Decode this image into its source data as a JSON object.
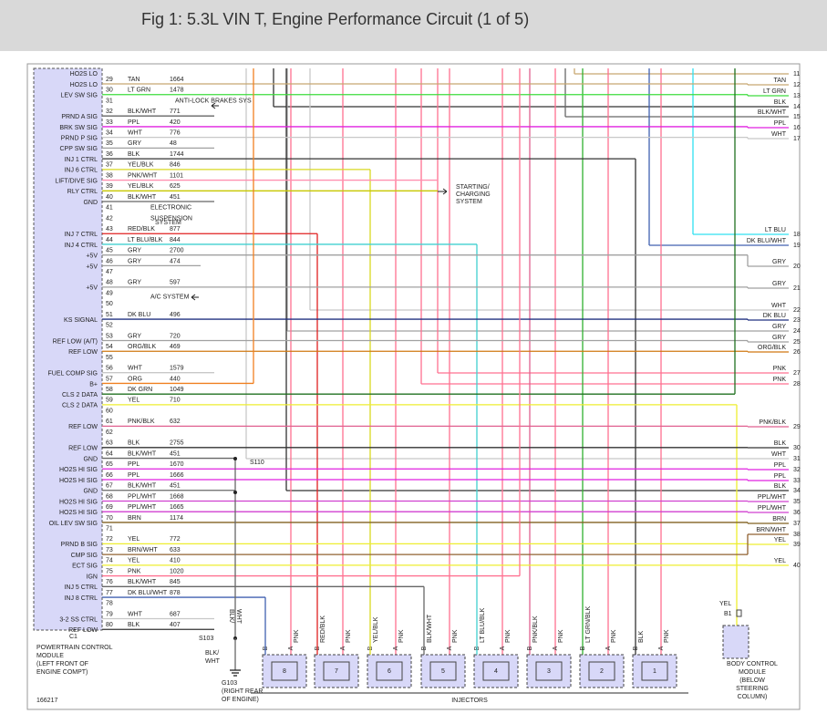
{
  "header": {
    "title": "Fig 1: 5.3L VIN T, Engine Performance Circuit (1 of 5)"
  },
  "pcm": {
    "cut_label": "HO2S LO",
    "connector": "C1",
    "label": [
      "POWERTRAIN CONTROL",
      "MODULE",
      "(LEFT FRONT OF",
      "ENGINE COMPT)"
    ],
    "pins": [
      {
        "pin": "29",
        "signal": "HO2S LO",
        "color": "TAN",
        "circuit": "1664",
        "stroke": "#c8a870"
      },
      {
        "pin": "30",
        "signal": "LEV SW SIG",
        "color": "LT GRN",
        "circuit": "1478",
        "stroke": "#3ddc3d"
      },
      {
        "pin": "31",
        "note": "ANTI-LOCK BRAKES SYS"
      },
      {
        "pin": "32",
        "signal": "PRND A SIG",
        "color": "BLK/WHT",
        "circuit": "771",
        "stroke": "#666666"
      },
      {
        "pin": "33",
        "signal": "BRK SW SIG",
        "color": "PPL",
        "circuit": "420",
        "stroke": "#e020e0"
      },
      {
        "pin": "34",
        "signal": "PRND P SIG",
        "color": "WHT",
        "circuit": "776",
        "stroke": "#c8c8c8"
      },
      {
        "pin": "35",
        "signal": "CPP SW SIG",
        "color": "GRY",
        "circuit": "48",
        "stroke": "#a0a0a0"
      },
      {
        "pin": "36",
        "signal": "INJ 1 CTRL",
        "color": "BLK",
        "circuit": "1744",
        "stroke": "#333333"
      },
      {
        "pin": "37",
        "signal": "INJ 6 CTRL",
        "color": "YEL/BLK",
        "circuit": "846",
        "stroke": "#d8d820"
      },
      {
        "pin": "38",
        "signal": "LIFT/DIVE SIG",
        "color": "PNK/WHT",
        "circuit": "1101",
        "stroke": "#ff90b0"
      },
      {
        "pin": "39",
        "signal": "RLY CTRL",
        "color": "YEL/BLK",
        "circuit": "625",
        "stroke": "#c8c800"
      },
      {
        "pin": "40",
        "signal": "GND",
        "color": "BLK/WHT",
        "circuit": "451",
        "stroke": "#666666"
      },
      {
        "pin": "41",
        "note": "ELECTRONIC"
      },
      {
        "pin": "42",
        "note": "SUSPENSION"
      },
      {
        "pin": "43",
        "signal": "INJ 7 CTRL",
        "color": "RED/BLK",
        "circuit": "877",
        "stroke": "#e02020"
      },
      {
        "pin": "44",
        "signal": "INJ 4 CTRL",
        "color": "LT BLU/BLK",
        "circuit": "844",
        "stroke": "#40d0d0"
      },
      {
        "pin": "45",
        "signal": "+5V",
        "color": "GRY",
        "circuit": "2700",
        "stroke": "#a0a0a0"
      },
      {
        "pin": "46",
        "signal": "+5V",
        "color": "GRY",
        "circuit": "474",
        "stroke": "#a0a0a0"
      },
      {
        "pin": "47"
      },
      {
        "pin": "48",
        "signal": "+5V",
        "color": "GRY",
        "circuit": "597",
        "stroke": "#a0a0a0"
      },
      {
        "pin": "49",
        "note": "A/C SYSTEM"
      },
      {
        "pin": "50"
      },
      {
        "pin": "51",
        "signal": "KS SIGNAL",
        "color": "DK BLU",
        "circuit": "496",
        "stroke": "#203080"
      },
      {
        "pin": "52"
      },
      {
        "pin": "53",
        "signal": "REF LOW (A/T)",
        "color": "GRY",
        "circuit": "720",
        "stroke": "#a0a0a0"
      },
      {
        "pin": "54",
        "signal": "REF LOW",
        "color": "ORG/BLK",
        "circuit": "469",
        "stroke": "#d07810"
      },
      {
        "pin": "55"
      },
      {
        "pin": "56",
        "signal": "FUEL COMP SIG",
        "color": "WHT",
        "circuit": "1579",
        "stroke": "#c8c8c8"
      },
      {
        "pin": "57",
        "signal": "B+",
        "color": "ORG",
        "circuit": "440",
        "stroke": "#f08020"
      },
      {
        "pin": "58",
        "signal": "CLS 2 DATA",
        "color": "DK GRN",
        "circuit": "1049",
        "stroke": "#207020"
      },
      {
        "pin": "59",
        "signal": "CLS 2 DATA",
        "color": "YEL",
        "circuit": "710",
        "stroke": "#eeee30"
      },
      {
        "pin": "60"
      },
      {
        "pin": "61",
        "signal": "REF LOW",
        "color": "PNK/BLK",
        "circuit": "632",
        "stroke": "#e06090"
      },
      {
        "pin": "62"
      },
      {
        "pin": "63",
        "signal": "REF LOW",
        "color": "BLK",
        "circuit": "2755",
        "stroke": "#333333"
      },
      {
        "pin": "64",
        "signal": "GND",
        "color": "BLK/WHT",
        "circuit": "451",
        "stroke": "#666666"
      },
      {
        "pin": "65",
        "signal": "HO2S HI SIG",
        "color": "PPL",
        "circuit": "1670",
        "stroke": "#e020e0"
      },
      {
        "pin": "66",
        "signal": "HO2S HI SIG",
        "color": "PPL",
        "circuit": "1666",
        "stroke": "#e020e0"
      },
      {
        "pin": "67",
        "signal": "GND",
        "color": "BLK/WHT",
        "circuit": "451",
        "stroke": "#666666"
      },
      {
        "pin": "68",
        "signal": "HO2S HI SIG",
        "color": "PPL/WHT",
        "circuit": "1668",
        "stroke": "#d040d0"
      },
      {
        "pin": "69",
        "signal": "HO2S HI SIG",
        "color": "PPL/WHT",
        "circuit": "1665",
        "stroke": "#d040d0"
      },
      {
        "pin": "70",
        "signal": "OIL LEV SW SIG",
        "color": "BRN",
        "circuit": "1174",
        "stroke": "#806020"
      },
      {
        "pin": "71"
      },
      {
        "pin": "72",
        "signal": "PRND B SIG",
        "color": "YEL",
        "circuit": "772",
        "stroke": "#eeee30"
      },
      {
        "pin": "73",
        "signal": "CMP SIG",
        "color": "BRN/WHT",
        "circuit": "633",
        "stroke": "#906030"
      },
      {
        "pin": "74",
        "signal": "ECT SIG",
        "color": "YEL",
        "circuit": "410",
        "stroke": "#eeee30"
      },
      {
        "pin": "75",
        "signal": "IGN",
        "color": "PNK",
        "circuit": "1020",
        "stroke": "#ff7090"
      },
      {
        "pin": "76",
        "signal": "INJ 5 CTRL",
        "color": "BLK/WHT",
        "circuit": "845",
        "stroke": "#666666"
      },
      {
        "pin": "77",
        "signal": "INJ 8 CTRL",
        "color": "DK BLU/WHT",
        "circuit": "878",
        "stroke": "#4060b0"
      },
      {
        "pin": "78"
      },
      {
        "pin": "79",
        "signal": "3-2 SS CTRL",
        "color": "WHT",
        "circuit": "687",
        "stroke": "#c8c8c8"
      },
      {
        "pin": "80",
        "signal": "REF LOW",
        "color": "BLK",
        "circuit": "407",
        "stroke": "#333333"
      }
    ]
  },
  "right_connector": [
    {
      "pin": "11",
      "stroke": "#c8a870"
    },
    {
      "pin": "12",
      "color": "TAN",
      "stroke": "#c8a870"
    },
    {
      "pin": "13",
      "color": "LT GRN",
      "stroke": "#3ddc3d"
    },
    {
      "pin": "14",
      "color": "BLK",
      "stroke": "#333333"
    },
    {
      "pin": "15",
      "color": "BLK/WHT",
      "stroke": "#666666"
    },
    {
      "pin": "16",
      "color": "PPL",
      "stroke": "#e020e0"
    },
    {
      "pin": "17",
      "color": "WHT",
      "stroke": "#c8c8c8"
    },
    {
      "pin": "18",
      "color": "LT BLU",
      "stroke": "#30e0f0"
    },
    {
      "pin": "19",
      "color": "DK BLU/WHT",
      "stroke": "#4060b0"
    },
    {
      "pin": "20",
      "color": "GRY",
      "stroke": "#a0a0a0"
    },
    {
      "pin": "21",
      "color": "GRY",
      "stroke": "#a0a0a0"
    },
    {
      "pin": "22",
      "color": "WHT",
      "stroke": "#c8c8c8"
    },
    {
      "pin": "23",
      "color": "DK BLU",
      "stroke": "#203080"
    },
    {
      "pin": "24",
      "color": "GRY",
      "stroke": "#a0a0a0"
    },
    {
      "pin": "25",
      "color": "GRY",
      "stroke": "#a0a0a0"
    },
    {
      "pin": "26",
      "color": "ORG/BLK",
      "stroke": "#d07810"
    },
    {
      "pin": "27",
      "color": "PNK",
      "stroke": "#ff7090"
    },
    {
      "pin": "28",
      "color": "PNK",
      "stroke": "#ff7090"
    },
    {
      "pin": "29",
      "color": "PNK/BLK",
      "stroke": "#e06090"
    },
    {
      "pin": "30",
      "color": "BLK",
      "stroke": "#333333"
    },
    {
      "pin": "31",
      "color": "WHT",
      "stroke": "#c8c8c8"
    },
    {
      "pin": "32",
      "color": "PPL",
      "stroke": "#e020e0"
    },
    {
      "pin": "33",
      "color": "PPL",
      "stroke": "#e020e0"
    },
    {
      "pin": "34",
      "color": "BLK",
      "stroke": "#333333"
    },
    {
      "pin": "35",
      "color": "PPL/WHT",
      "stroke": "#d040d0"
    },
    {
      "pin": "36",
      "color": "PPL/WHT",
      "stroke": "#d040d0"
    },
    {
      "pin": "37",
      "color": "BRN",
      "stroke": "#806020"
    },
    {
      "pin": "38",
      "color": "BRN/WHT",
      "stroke": "#906030"
    },
    {
      "pin": "39",
      "color": "YEL",
      "stroke": "#eeee30"
    },
    {
      "pin": "40",
      "color": "YEL",
      "stroke": "#eeee30"
    }
  ],
  "injectors": {
    "label": "INJECTORS",
    "pins": [
      "B",
      "A"
    ],
    "items": [
      {
        "number": "8",
        "color_a": "PNK",
        "stroke_b": "#4060b0",
        "stroke_a": "#ff7090"
      },
      {
        "number": "7",
        "color_b": "RED/BLK",
        "color_a": "PNK",
        "stroke_b": "#e02020",
        "stroke_a": "#ff7090"
      },
      {
        "number": "6",
        "color_b": "YEL/BLK",
        "color_a": "PNK",
        "stroke_b": "#d8d820",
        "stroke_a": "#ff7090"
      },
      {
        "number": "5",
        "color_b": "BLK/WHT",
        "color_a": "PNK",
        "stroke_b": "#666666",
        "stroke_a": "#ff7090"
      },
      {
        "number": "4",
        "color_b": "LT BLU/BLK",
        "color_a": "PNK",
        "stroke_b": "#40d0d0",
        "stroke_a": "#ff7090"
      },
      {
        "number": "3",
        "color_b": "PNK/BLK",
        "color_a": "PNK",
        "stroke_b": "#e06090",
        "stroke_a": "#ff7090"
      },
      {
        "number": "2",
        "color_b": "LT GRN/BLK",
        "color_a": "PNK",
        "stroke_b": "#30b030",
        "stroke_a": "#ff7090"
      },
      {
        "number": "1",
        "color_b": "BLK",
        "color_a": "PNK",
        "stroke_b": "#333333",
        "stroke_a": "#ff7090"
      }
    ]
  },
  "body_control_module": {
    "wire": "YEL",
    "pin": "B1",
    "label": [
      "BODY CONTROL",
      "MODULE",
      "(BELOW",
      "STEERING",
      "COLUMN)"
    ]
  },
  "splices": {
    "s110": "S110",
    "s103": "S103",
    "wire_vertical": [
      "BLK/",
      "WHT"
    ],
    "wire_lower": [
      "BLK/",
      "WHT"
    ],
    "ground": "G103",
    "ground_location": [
      "(RIGHT REAR",
      "OF ENGINE)"
    ]
  },
  "systems": {
    "starting": [
      "STARTING/",
      "CHARGING",
      "SYSTEM"
    ],
    "suspension_last": "SYSTEM"
  },
  "figure_id": "166217"
}
